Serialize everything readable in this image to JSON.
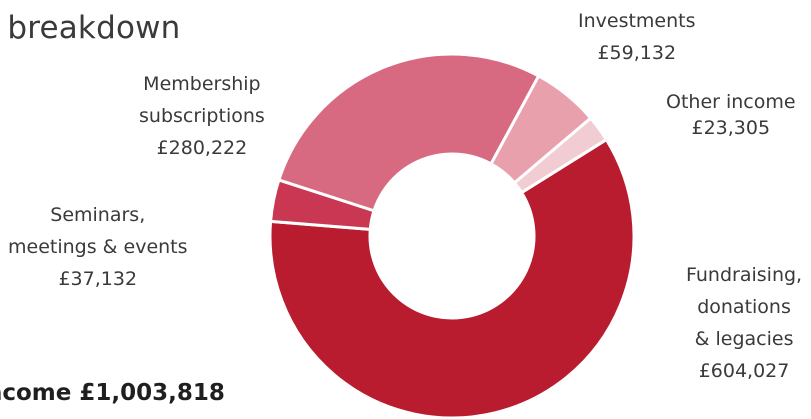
{
  "header": {
    "title": "e breakdown"
  },
  "footer": {
    "total": "ncome £1,003,818"
  },
  "chart_data": {
    "type": "pie",
    "donut": true,
    "currency": "£",
    "total": 1003818,
    "slices": [
      {
        "lines": [
          "Fundraising,",
          "donations",
          "& legacies"
        ],
        "value_label": "£604,027",
        "value": 604027,
        "color": "#b91c2e"
      },
      {
        "lines": [
          "Seminars,",
          "meetings & events"
        ],
        "value_label": "£37,132",
        "value": 37132,
        "color": "#c93752"
      },
      {
        "lines": [
          "Membership",
          "subscriptions"
        ],
        "value_label": "£280,222",
        "value": 280222,
        "color": "#d76a80"
      },
      {
        "lines": [
          "Investments"
        ],
        "value_label": "£59,132",
        "value": 59132,
        "color": "#e8a0ad"
      },
      {
        "lines": [
          "Other income"
        ],
        "value_label": "£23,305",
        "value": 23305,
        "color": "#f1cdd3"
      }
    ]
  }
}
